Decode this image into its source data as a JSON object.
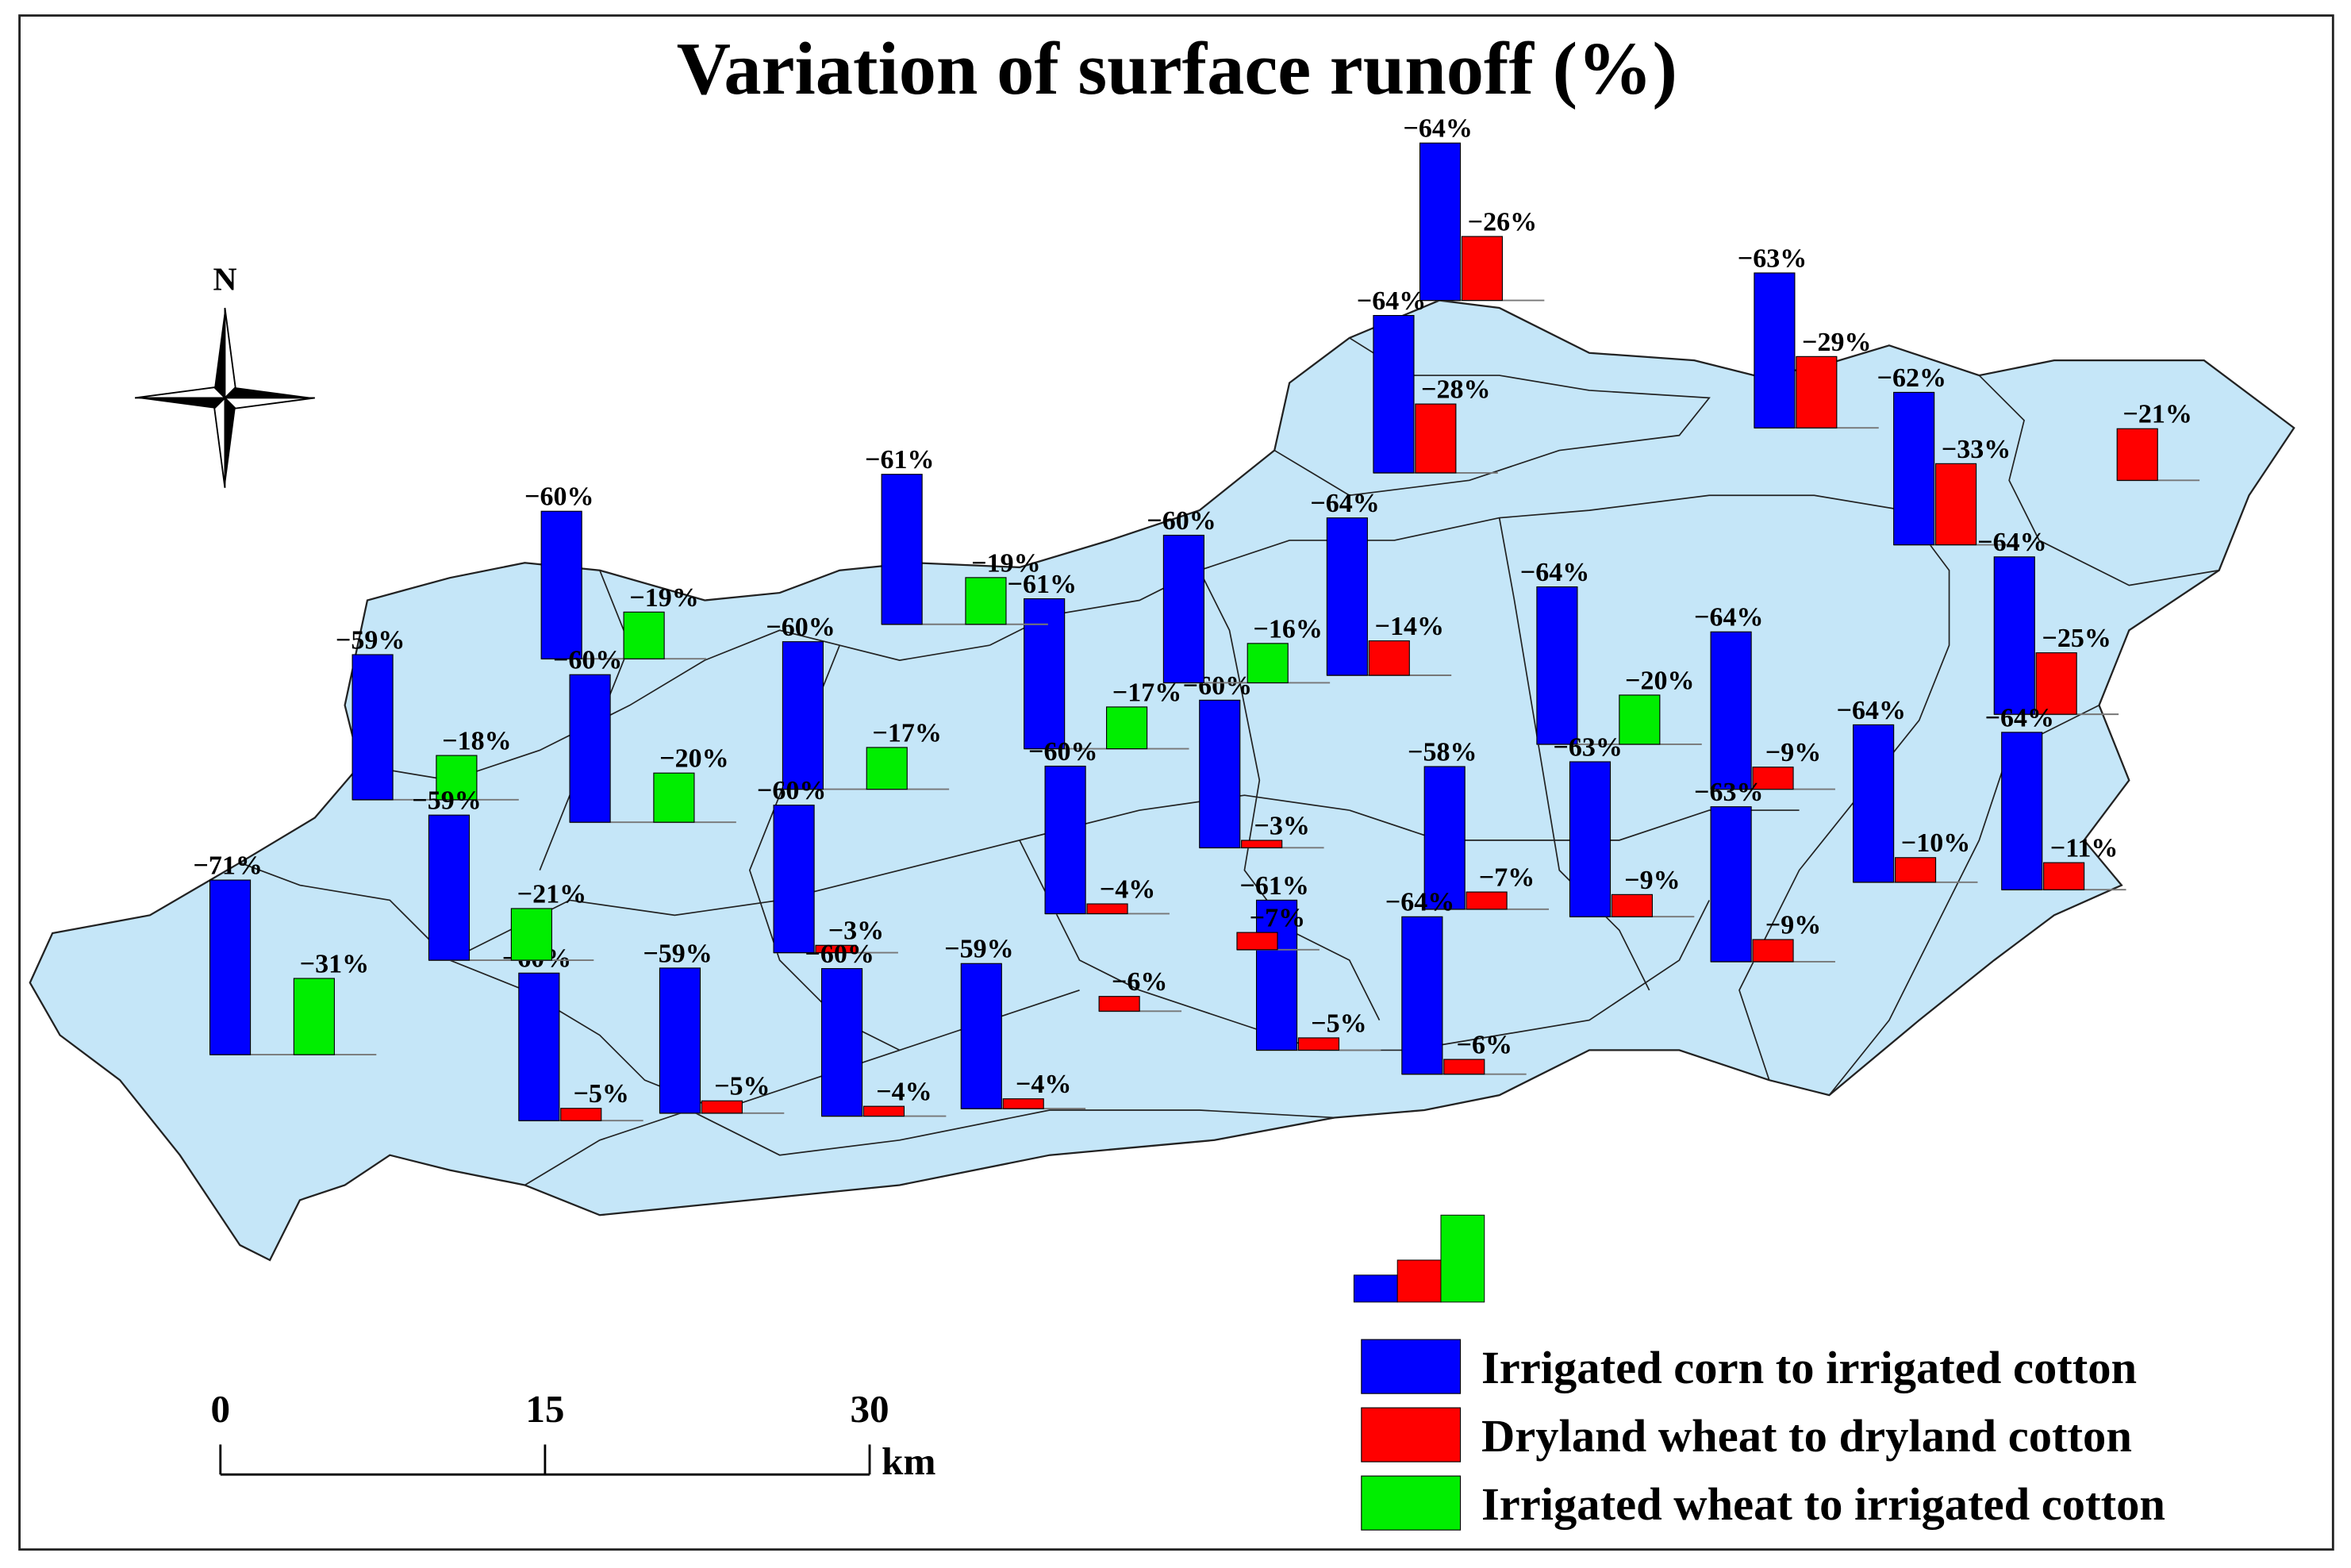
{
  "title": "Variation of surface runoff (%)",
  "north_label": "N",
  "scale_bar": {
    "ticks": [
      0,
      15,
      30
    ],
    "unit": "km"
  },
  "legend": [
    {
      "name": "Irrigated corn to irrigated cotton",
      "color": "#0000ff"
    },
    {
      "name": "Dryland wheat to dryland cotton",
      "color": "#ff0000"
    },
    {
      "name": "Irrigated wheat to irrigated cotton",
      "color": "#00ee00"
    }
  ],
  "groups": [
    {
      "values": [
        -64,
        -26,
        null
      ],
      "value_labels": [
        "−64%",
        "−26%",
        null
      ]
    },
    {
      "values": [
        -64,
        -28,
        null
      ],
      "value_labels": [
        "−64%",
        "−28%",
        null
      ]
    },
    {
      "values": [
        -63,
        -29,
        null
      ],
      "value_labels": [
        "−63%",
        "−29%",
        null
      ]
    },
    {
      "values": [
        -62,
        -33,
        null
      ],
      "value_labels": [
        "−62%",
        "−33%",
        null
      ]
    },
    {
      "values": [
        null,
        -21,
        null
      ],
      "value_labels": [
        null,
        "−21%",
        null
      ]
    },
    {
      "values": [
        -64,
        -25,
        null
      ],
      "value_labels": [
        "−64%",
        "−25%",
        null
      ]
    },
    {
      "values": [
        -64,
        -11,
        null
      ],
      "value_labels": [
        "−64%",
        "−11%",
        null
      ]
    },
    {
      "values": [
        -64,
        -10,
        null
      ],
      "value_labels": [
        "−64%",
        "−10%",
        null
      ]
    },
    {
      "values": [
        -64,
        -9,
        null
      ],
      "value_labels": [
        "−64%",
        "−9%",
        null
      ]
    },
    {
      "values": [
        -63,
        -9,
        null
      ],
      "value_labels": [
        "−63%",
        "−9%",
        null
      ]
    },
    {
      "values": [
        -64,
        null,
        -20
      ],
      "value_labels": [
        "−64%",
        null,
        "−20%"
      ]
    },
    {
      "values": [
        -63,
        -9,
        null
      ],
      "value_labels": [
        "−63%",
        "−9%",
        null
      ]
    },
    {
      "values": [
        -58,
        -7,
        null
      ],
      "value_labels": [
        "−58%",
        "−7%",
        null
      ]
    },
    {
      "values": [
        -64,
        -6,
        null
      ],
      "value_labels": [
        "−64%",
        "−6%",
        null
      ]
    },
    {
      "values": [
        -64,
        -14,
        null
      ],
      "value_labels": [
        "−64%",
        "−14%",
        null
      ]
    },
    {
      "values": [
        -60,
        -3,
        null
      ],
      "value_labels": [
        "−60%",
        "−3%",
        null
      ]
    },
    {
      "values": [
        -61,
        -5,
        null
      ],
      "value_labels": [
        "−61%",
        "−5%",
        null
      ]
    },
    {
      "values": [
        null,
        -7,
        null
      ],
      "value_labels": [
        null,
        "−7%",
        null
      ]
    },
    {
      "values": [
        null,
        -6,
        null
      ],
      "value_labels": [
        null,
        "−6%",
        null
      ]
    },
    {
      "values": [
        -60,
        null,
        -16
      ],
      "value_labels": [
        "−60%",
        null,
        "−16%"
      ]
    },
    {
      "values": [
        -61,
        null,
        -17
      ],
      "value_labels": [
        "−61%",
        null,
        "−17%"
      ]
    },
    {
      "values": [
        -60,
        -4,
        null
      ],
      "value_labels": [
        "−60%",
        "−4%",
        null
      ]
    },
    {
      "values": [
        -59,
        -4,
        null
      ],
      "value_labels": [
        "−59%",
        "−4%",
        null
      ]
    },
    {
      "values": [
        -61,
        null,
        -19
      ],
      "value_labels": [
        "−61%",
        null,
        "−19%"
      ]
    },
    {
      "values": [
        -60,
        null,
        -17
      ],
      "value_labels": [
        "−60%",
        null,
        "−17%"
      ]
    },
    {
      "values": [
        -60,
        -3,
        null
      ],
      "value_labels": [
        "−60%",
        "−3%",
        null
      ]
    },
    {
      "values": [
        -60,
        -4,
        null
      ],
      "value_labels": [
        "−60%",
        "−4%",
        null
      ]
    },
    {
      "values": [
        -59,
        -5,
        null
      ],
      "value_labels": [
        "−59%",
        "−5%",
        null
      ]
    },
    {
      "values": [
        -60,
        -5,
        null
      ],
      "value_labels": [
        "−60%",
        "−5%",
        null
      ]
    },
    {
      "values": [
        -60,
        null,
        -19
      ],
      "value_labels": [
        "−60%",
        null,
        "−19%"
      ]
    },
    {
      "values": [
        -60,
        null,
        -20
      ],
      "value_labels": [
        "−60%",
        null,
        "−20%"
      ]
    },
    {
      "values": [
        -59,
        null,
        -18
      ],
      "value_labels": [
        "−59%",
        null,
        "−18%"
      ]
    },
    {
      "values": [
        -59,
        null,
        -21
      ],
      "value_labels": [
        "−59%",
        null,
        "−21%"
      ]
    },
    {
      "values": [
        -71,
        null,
        -31
      ],
      "value_labels": [
        "−71%",
        null,
        "−31%"
      ]
    }
  ]
}
